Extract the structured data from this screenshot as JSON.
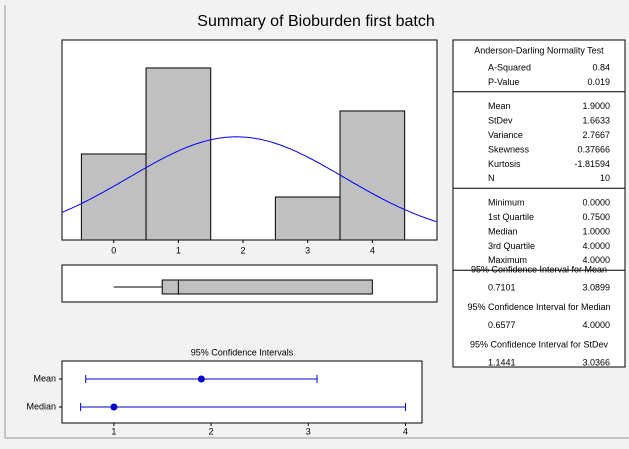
{
  "title": "Summary of Bioburden first batch",
  "chart_data": [
    {
      "type": "histogram",
      "bins": [
        -0.5,
        0.5,
        1.5,
        2.5,
        3.5,
        4.5
      ],
      "counts": [
        2,
        4,
        0,
        1,
        3
      ],
      "xlim": [
        -0.8,
        5.0
      ],
      "ylim": [
        0,
        4.65
      ],
      "xticks": [
        0,
        1,
        2,
        3,
        4
      ],
      "color": "#c0c0c0",
      "curve_color": "#0000ff"
    },
    {
      "type": "box",
      "min": 0,
      "q1": 0.75,
      "median": 1,
      "q3": 4,
      "max": 4,
      "xlim": [
        -0.8,
        5.0
      ],
      "color": "#c0c0c0"
    },
    {
      "type": "interval",
      "title": "95% Confidence Intervals",
      "categories": [
        "Mean",
        "Median"
      ],
      "values": [
        1.9,
        1.0
      ],
      "lower": [
        0.7101,
        0.6577
      ],
      "upper": [
        3.0899,
        4.0
      ],
      "xlim": [
        0.466,
        4.17
      ],
      "xticks": [
        1,
        2,
        3,
        4
      ],
      "color": "#0000cc"
    }
  ],
  "table": {
    "test_title": "Anderson-Darling Normality Test",
    "sections": [
      [
        [
          "A-Squared",
          "0.84"
        ],
        [
          "P-Value",
          "0.019"
        ]
      ],
      [
        [
          "Mean",
          "1.9000"
        ],
        [
          "StDev",
          "1.6633"
        ],
        [
          "Variance",
          "2.7667"
        ],
        [
          "Skewness",
          "0.37666"
        ],
        [
          "Kurtosis",
          "-1.81594"
        ],
        [
          "N",
          "10"
        ]
      ],
      [
        [
          "Minimum",
          "0.0000"
        ],
        [
          "1st Quartile",
          "0.7500"
        ],
        [
          "Median",
          "1.0000"
        ],
        [
          "3rd Quartile",
          "4.0000"
        ],
        [
          "Maximum",
          "4.0000"
        ]
      ]
    ],
    "intervals": [
      {
        "title": "95% Confidence Interval for Mean",
        "low": "0.7101",
        "high": "3.0899"
      },
      {
        "title": "95% Confidence Interval for Median",
        "low": "0.6577",
        "high": "4.0000"
      },
      {
        "title": "95% Confidence Interval for StDev",
        "low": "1.1441",
        "high": "3.0366"
      }
    ]
  }
}
